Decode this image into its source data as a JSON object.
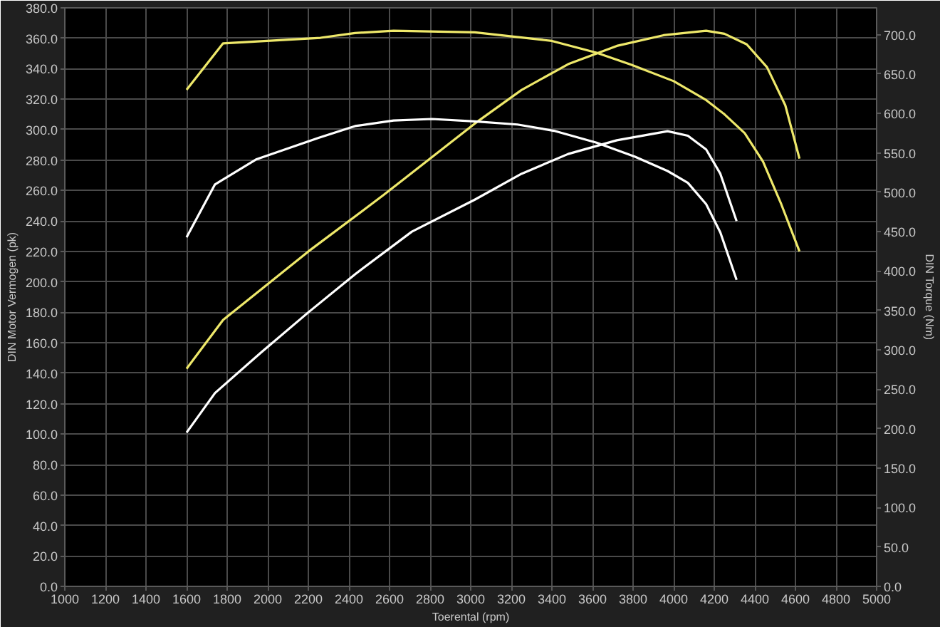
{
  "chart_data": {
    "type": "line",
    "xlabel": "Toerental (rpm)",
    "ylabel": "DIN Motor Vermogen (pk)",
    "y2label": "DIN Torque (Nm)",
    "xlim": [
      1000,
      5000
    ],
    "xticks": [
      1000,
      1200,
      1400,
      1600,
      1800,
      2000,
      2200,
      2400,
      2600,
      2800,
      3000,
      3200,
      3400,
      3600,
      3800,
      4000,
      4200,
      4400,
      4600,
      4800,
      5000
    ],
    "ylim": [
      0,
      380
    ],
    "yticks": [
      {
        "value": 0,
        "label": "0.0"
      },
      {
        "value": 20,
        "label": "20.0"
      },
      {
        "value": 40,
        "label": "40.0"
      },
      {
        "value": 60,
        "label": "60.0"
      },
      {
        "value": 80,
        "label": "80.0"
      },
      {
        "value": 100,
        "label": "100.0"
      },
      {
        "value": 120,
        "label": "120.0"
      },
      {
        "value": 140,
        "label": "140.0"
      },
      {
        "value": 160,
        "label": "160.0"
      },
      {
        "value": 180,
        "label": "180.0"
      },
      {
        "value": 200,
        "label": "200.0"
      },
      {
        "value": 220,
        "label": "220.0"
      },
      {
        "value": 240,
        "label": "240.0"
      },
      {
        "value": 260,
        "label": "260.0"
      },
      {
        "value": 280,
        "label": "280.0"
      },
      {
        "value": 300,
        "label": "300.0"
      },
      {
        "value": 320,
        "label": "320.0"
      },
      {
        "value": 340,
        "label": "340.0"
      },
      {
        "value": 360,
        "label": "360.0"
      },
      {
        "value": 380,
        "label": "380.0"
      }
    ],
    "y2lim": [
      0,
      734
    ],
    "y2ticks": [
      {
        "value": 0,
        "label": "0.0"
      },
      {
        "value": 50,
        "label": "50.0"
      },
      {
        "value": 100,
        "label": "100.0"
      },
      {
        "value": 150,
        "label": "150.0"
      },
      {
        "value": 200,
        "label": "200.0"
      },
      {
        "value": 250,
        "label": "250.0"
      },
      {
        "value": 300,
        "label": "300.0"
      },
      {
        "value": 350,
        "label": "350.0"
      },
      {
        "value": 400,
        "label": "400.0"
      },
      {
        "value": 450,
        "label": "450.0"
      },
      {
        "value": 500,
        "label": "500.0"
      },
      {
        "value": 550,
        "label": "550.0"
      },
      {
        "value": 600,
        "label": "600.0"
      },
      {
        "value": 650,
        "label": "650.0"
      },
      {
        "value": 700,
        "label": "700.0"
      }
    ],
    "grid": true,
    "series": [
      {
        "color": "#eee86a",
        "axis": "y2",
        "x": [
          1600,
          1780,
          2260,
          2430,
          2620,
          3020,
          3400,
          3620,
          3790,
          4000,
          4160,
          4250,
          4350,
          4440,
          4530,
          4620
        ],
        "values": [
          630,
          689,
          696,
          702,
          705,
          703,
          692,
          677,
          662,
          641,
          617,
          599,
          575,
          539,
          485,
          425
        ]
      },
      {
        "color": "#eee86a",
        "x": [
          1600,
          1780,
          2200,
          2570,
          3020,
          3250,
          3480,
          3720,
          3950,
          4160,
          4250,
          4360,
          4460,
          4550,
          4620
        ],
        "values": [
          143,
          175,
          220,
          257,
          304,
          326,
          343,
          355,
          362,
          365,
          363,
          356,
          341,
          316,
          281
        ]
      },
      {
        "color": "#ffffff",
        "axis": "y2",
        "x": [
          1600,
          1740,
          1945,
          2250,
          2430,
          2620,
          2810,
          3020,
          3230,
          3410,
          3620,
          3810,
          3970,
          4070,
          4160,
          4230,
          4310
        ],
        "values": [
          443,
          510,
          542,
          569,
          584,
          591,
          593,
          590,
          586,
          578,
          563,
          545,
          527,
          512,
          485,
          449,
          389
        ]
      },
      {
        "color": "#ffffff",
        "x": [
          1600,
          1740,
          1970,
          2200,
          2430,
          2710,
          3020,
          3250,
          3480,
          3720,
          3970,
          4070,
          4160,
          4230,
          4310
        ],
        "values": [
          101,
          127,
          154,
          180,
          205,
          233,
          254,
          271,
          284,
          293,
          299,
          296,
          287,
          271,
          240
        ]
      }
    ]
  }
}
